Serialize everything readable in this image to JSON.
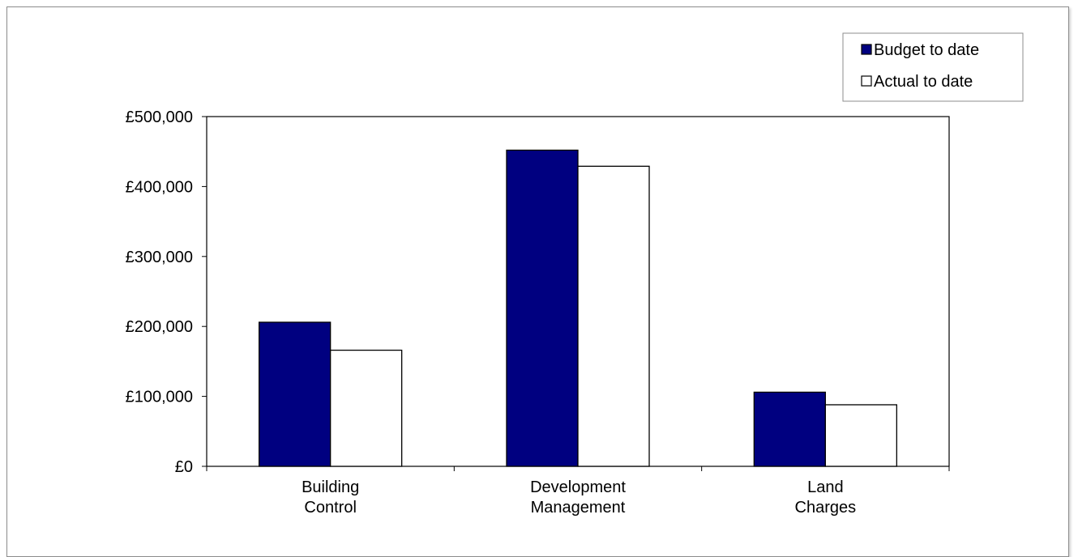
{
  "chart_data": {
    "type": "bar",
    "categories": [
      [
        "Building",
        "Control"
      ],
      [
        "Development",
        "Management"
      ],
      [
        "Land",
        "Charges"
      ]
    ],
    "series": [
      {
        "name": "Budget to date",
        "values": [
          206000,
          452000,
          106000
        ],
        "color": "#000080"
      },
      {
        "name": "Actual to date",
        "values": [
          166000,
          429000,
          88000
        ],
        "color": "#ffffff"
      }
    ],
    "y_ticks": [
      "£0",
      "£100,000",
      "£200,000",
      "£300,000",
      "£400,000",
      "£500,000"
    ],
    "ylim": [
      0,
      500000
    ],
    "legend_position": "top-right",
    "grid": false
  }
}
